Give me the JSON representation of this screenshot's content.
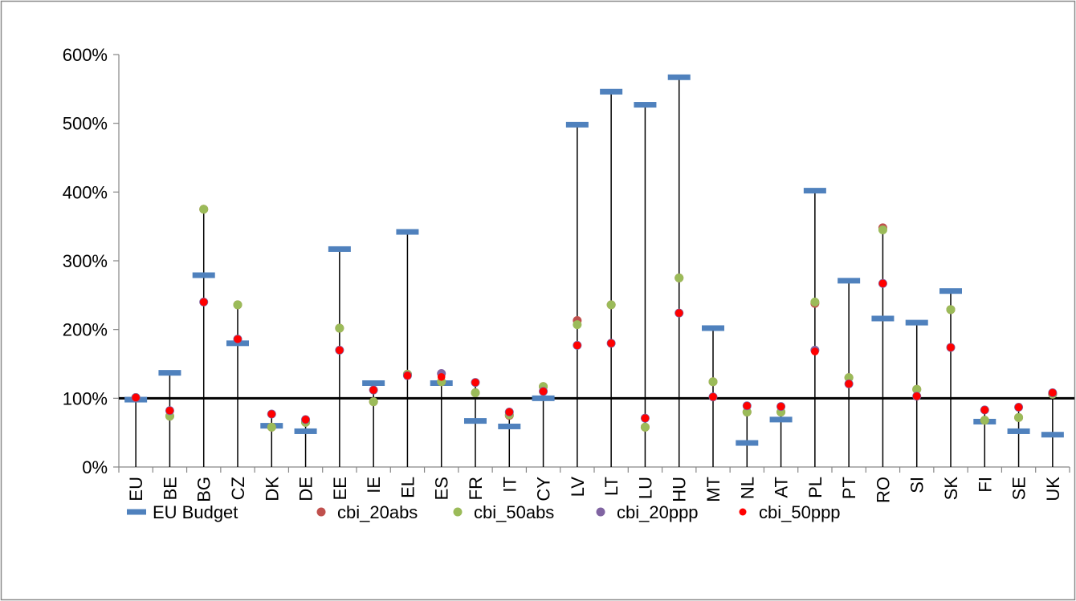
{
  "chart_data": {
    "type": "scatter",
    "categories": [
      "EU",
      "BE",
      "BG",
      "CZ",
      "DK",
      "DE",
      "EE",
      "IE",
      "EL",
      "ES",
      "FR",
      "IT",
      "CY",
      "LV",
      "LT",
      "LU",
      "HU",
      "MT",
      "NL",
      "AT",
      "PL",
      "PT",
      "RO",
      "SI",
      "SK",
      "FI",
      "SE",
      "UK"
    ],
    "y_axis": {
      "min": 0,
      "max": 600,
      "step": 100,
      "tick_labels": [
        "0%",
        "100%",
        "200%",
        "300%",
        "400%",
        "500%",
        "600%"
      ]
    },
    "reference_line": 100,
    "series": [
      {
        "name": "EU Budget",
        "marker": "dash",
        "color": "#4f81bd",
        "values": [
          98,
          137,
          279,
          180,
          60,
          52,
          317,
          122,
          342,
          122,
          67,
          59,
          100,
          498,
          546,
          527,
          567,
          202,
          35,
          69,
          402,
          271,
          216,
          210,
          256,
          66,
          52,
          47
        ]
      },
      {
        "name": "cbi_20abs",
        "marker": "circle",
        "color": "#c0504d",
        "values": [
          101,
          74,
          375,
          236,
          58,
          65,
          202,
          95,
          135,
          124,
          108,
          75,
          117,
          213,
          236,
          58,
          275,
          124,
          80,
          80,
          238,
          130,
          348,
          113,
          229,
          68,
          72,
          106
        ]
      },
      {
        "name": "cbi_50abs",
        "marker": "circle",
        "color": "#9bbb59",
        "values": [
          101,
          74,
          375,
          236,
          58,
          65,
          202,
          95,
          135,
          124,
          108,
          76,
          117,
          207,
          236,
          58,
          275,
          124,
          80,
          80,
          240,
          130,
          345,
          113,
          229,
          68,
          72,
          106
        ]
      },
      {
        "name": "cbi_20ppp",
        "marker": "circle",
        "color": "#8064a2",
        "values": [
          101,
          82,
          240,
          186,
          77,
          69,
          170,
          112,
          133,
          136,
          123,
          80,
          110,
          177,
          180,
          71,
          224,
          102,
          89,
          88,
          170,
          121,
          267,
          103,
          174,
          83,
          87,
          108
        ]
      },
      {
        "name": "cbi_50ppp",
        "marker": "circle",
        "color": "#ff0000",
        "values": [
          101,
          82,
          240,
          186,
          77,
          69,
          170,
          112,
          133,
          131,
          123,
          80,
          110,
          177,
          180,
          71,
          224,
          102,
          89,
          88,
          168,
          121,
          267,
          103,
          174,
          83,
          87,
          108
        ]
      }
    ]
  },
  "colors": {
    "axis": "#868686",
    "stem": "#000000",
    "frame": "#898989"
  }
}
